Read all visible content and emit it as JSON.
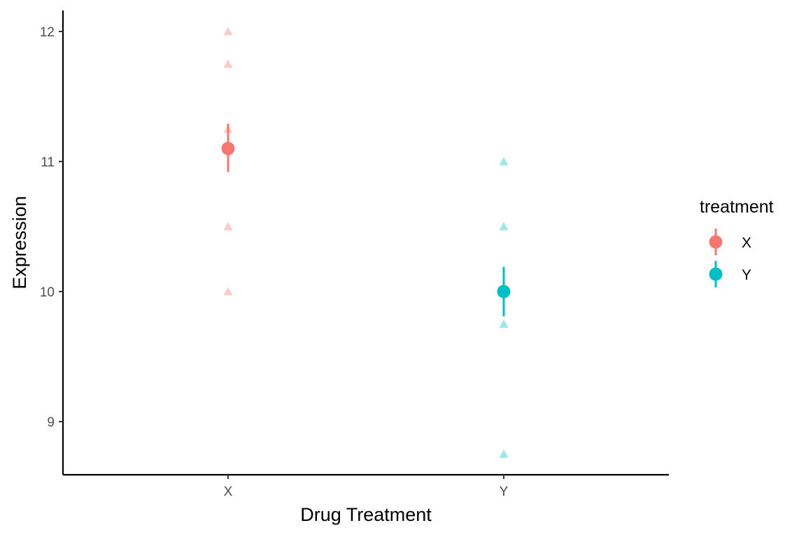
{
  "chart_data": {
    "type": "scatter",
    "title": "",
    "xlabel": "Drug Treatment",
    "ylabel": "Expression",
    "categories": [
      "X",
      "Y"
    ],
    "ylim": [
      8.6,
      12.16
    ],
    "yticks": [
      9,
      10,
      11,
      12
    ],
    "grid": false,
    "legend": {
      "title": "treatment",
      "position": "right",
      "entries": [
        "X",
        "Y"
      ]
    },
    "series": [
      {
        "name": "X",
        "color": "#F8766D",
        "raw_points": [
          12.0,
          11.75,
          11.25,
          10.5,
          10.0
        ],
        "mean": 11.1,
        "error_low": 10.92,
        "error_high": 11.29
      },
      {
        "name": "Y",
        "color": "#00BFC4",
        "raw_points": [
          11.0,
          10.5,
          9.75,
          8.75
        ],
        "mean": 10.0,
        "error_low": 9.81,
        "error_high": 10.19
      }
    ]
  }
}
